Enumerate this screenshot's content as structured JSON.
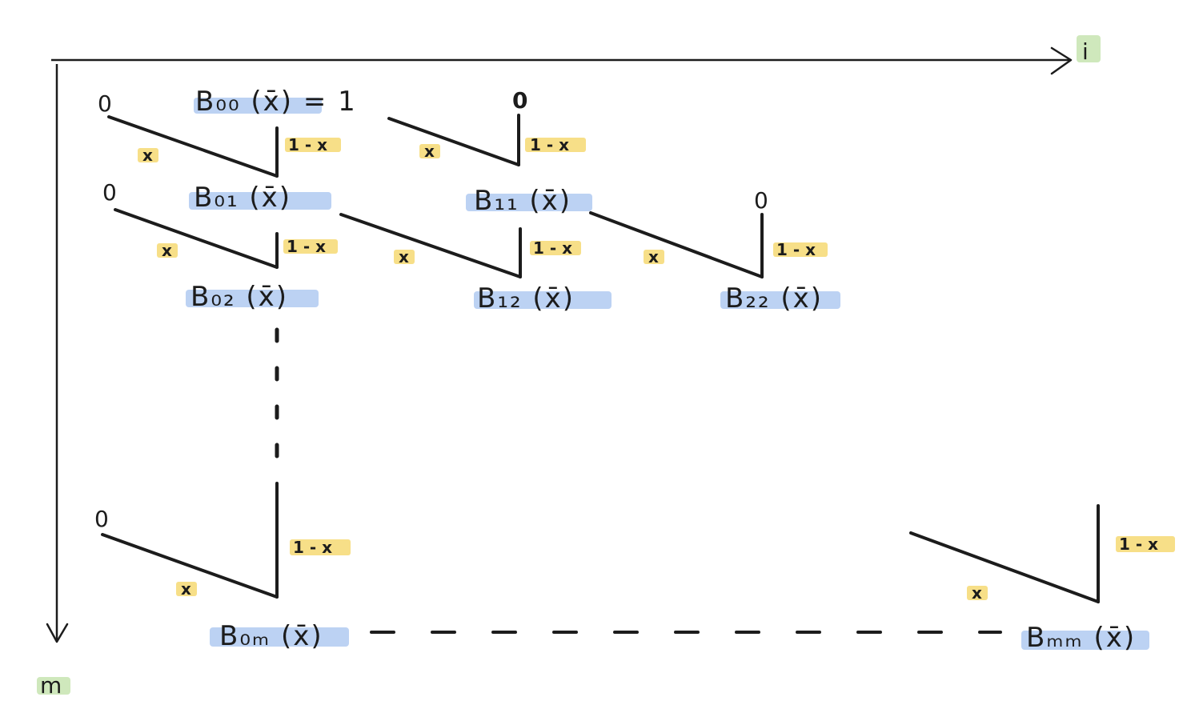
{
  "colors": {
    "ink": "#1c1c1c",
    "node_highlight": "#bcd2f3",
    "weight_highlight": "#f7df88",
    "axis_highlight": "#cfe8bc"
  },
  "axes": {
    "horizontal_label": "i",
    "vertical_label": "m"
  },
  "nodes": {
    "b00": "B₀₀ (x̄) = 1",
    "b01": "B₀₁ (x̄)",
    "b11": "B₁₁ (x̄)",
    "b02": "B₀₂ (x̄)",
    "b12": "B₁₂ (x̄)",
    "b22": "B₂₂ (x̄)",
    "b0m": "B₀ₘ (x̄)",
    "bmm": "Bₘₘ (x̄)"
  },
  "zeros": {
    "z1": "0",
    "z2": "0",
    "z3": "0",
    "z4": "0",
    "z5": "0"
  },
  "weights": {
    "x": "x",
    "one_minus_x": "1 - x"
  }
}
